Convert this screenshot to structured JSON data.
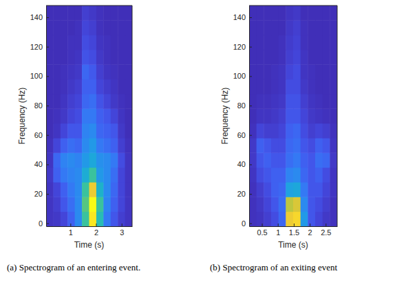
{
  "chart_data": [
    {
      "type": "heatmap",
      "caption": "(a) Spectrogram of an entering event.",
      "xlabel": "Time (s)",
      "ylabel": "Frequency (Hz)",
      "xlim": [
        0.05,
        3.41
      ],
      "xticks": [
        1,
        2,
        3
      ],
      "ylim": [
        -2,
        148
      ],
      "yticks": [
        0,
        20,
        40,
        60,
        80,
        100,
        120,
        140
      ],
      "x_bins": [
        0.05,
        0.33,
        0.61,
        0.89,
        1.17,
        1.45,
        1.73,
        2.01,
        2.29,
        2.57,
        2.85,
        3.13,
        3.41
      ],
      "y_bins": [
        -2,
        8,
        18,
        28,
        38,
        48,
        58,
        68,
        78,
        88,
        98,
        108,
        118,
        128,
        138,
        148
      ],
      "zlim": [
        0,
        1
      ],
      "cells": [
        [
          0.05,
          0.06,
          0.1,
          0.18,
          0.3,
          0.55,
          0.95,
          0.5,
          0.25,
          0.15,
          0.08,
          0.05
        ],
        [
          0.05,
          0.08,
          0.15,
          0.22,
          0.3,
          0.6,
          1.0,
          0.55,
          0.28,
          0.18,
          0.1,
          0.05
        ],
        [
          0.05,
          0.1,
          0.18,
          0.25,
          0.3,
          0.55,
          0.85,
          0.45,
          0.3,
          0.2,
          0.1,
          0.05
        ],
        [
          0.06,
          0.18,
          0.25,
          0.28,
          0.3,
          0.42,
          0.55,
          0.35,
          0.3,
          0.22,
          0.1,
          0.05
        ],
        [
          0.05,
          0.2,
          0.28,
          0.3,
          0.28,
          0.35,
          0.4,
          0.32,
          0.3,
          0.25,
          0.12,
          0.05
        ],
        [
          0.04,
          0.1,
          0.18,
          0.22,
          0.2,
          0.3,
          0.35,
          0.25,
          0.22,
          0.18,
          0.08,
          0.04
        ],
        [
          0.03,
          0.05,
          0.1,
          0.15,
          0.15,
          0.28,
          0.3,
          0.2,
          0.18,
          0.15,
          0.06,
          0.03
        ],
        [
          0.03,
          0.04,
          0.06,
          0.1,
          0.12,
          0.25,
          0.25,
          0.18,
          0.15,
          0.1,
          0.05,
          0.03
        ],
        [
          0.03,
          0.03,
          0.05,
          0.08,
          0.1,
          0.2,
          0.22,
          0.14,
          0.1,
          0.06,
          0.04,
          0.03
        ],
        [
          0.03,
          0.03,
          0.04,
          0.06,
          0.08,
          0.18,
          0.18,
          0.1,
          0.07,
          0.05,
          0.03,
          0.03
        ],
        [
          0.03,
          0.03,
          0.04,
          0.05,
          0.06,
          0.2,
          0.16,
          0.08,
          0.05,
          0.04,
          0.03,
          0.03
        ],
        [
          0.03,
          0.03,
          0.03,
          0.04,
          0.05,
          0.14,
          0.12,
          0.06,
          0.04,
          0.03,
          0.03,
          0.03
        ],
        [
          0.03,
          0.03,
          0.03,
          0.04,
          0.04,
          0.12,
          0.1,
          0.05,
          0.04,
          0.03,
          0.03,
          0.03
        ],
        [
          0.03,
          0.03,
          0.03,
          0.03,
          0.04,
          0.1,
          0.08,
          0.04,
          0.03,
          0.03,
          0.03,
          0.03
        ],
        [
          0.03,
          0.03,
          0.03,
          0.03,
          0.03,
          0.08,
          0.06,
          0.04,
          0.03,
          0.03,
          0.03,
          0.03
        ]
      ]
    },
    {
      "type": "heatmap",
      "caption": "(b) Spectrogram of an exiting event",
      "xlabel": "Time (s)",
      "ylabel": "Frequency (Hz)",
      "xlim": [
        0.1,
        2.86
      ],
      "xticks": [
        0.5,
        1,
        1.5,
        2,
        2.5
      ],
      "ylim": [
        -2,
        148
      ],
      "yticks": [
        0,
        20,
        40,
        60,
        80,
        100,
        120,
        140
      ],
      "x_bins": [
        0.1,
        0.33,
        0.56,
        0.79,
        1.02,
        1.25,
        1.48,
        1.71,
        1.94,
        2.17,
        2.4,
        2.63,
        2.86
      ],
      "y_bins": [
        -2,
        8,
        18,
        28,
        38,
        48,
        58,
        68,
        78,
        88,
        98,
        108,
        118,
        128,
        138,
        148
      ],
      "zlim": [
        0,
        1
      ],
      "cells": [
        [
          0.04,
          0.05,
          0.08,
          0.12,
          0.2,
          0.85,
          0.9,
          0.35,
          0.15,
          0.1,
          0.06,
          0.04
        ],
        [
          0.04,
          0.06,
          0.1,
          0.15,
          0.22,
          0.75,
          0.8,
          0.3,
          0.15,
          0.12,
          0.08,
          0.04
        ],
        [
          0.04,
          0.08,
          0.12,
          0.18,
          0.2,
          0.38,
          0.4,
          0.25,
          0.15,
          0.15,
          0.1,
          0.05
        ],
        [
          0.05,
          0.12,
          0.15,
          0.18,
          0.18,
          0.28,
          0.3,
          0.2,
          0.15,
          0.18,
          0.12,
          0.05
        ],
        [
          0.06,
          0.15,
          0.18,
          0.15,
          0.15,
          0.22,
          0.25,
          0.18,
          0.15,
          0.22,
          0.2,
          0.06
        ],
        [
          0.06,
          0.18,
          0.15,
          0.12,
          0.12,
          0.2,
          0.22,
          0.15,
          0.12,
          0.18,
          0.15,
          0.05
        ],
        [
          0.04,
          0.1,
          0.08,
          0.08,
          0.1,
          0.18,
          0.2,
          0.12,
          0.08,
          0.1,
          0.08,
          0.04
        ],
        [
          0.03,
          0.05,
          0.05,
          0.06,
          0.08,
          0.15,
          0.15,
          0.1,
          0.06,
          0.05,
          0.04,
          0.03
        ],
        [
          0.03,
          0.04,
          0.04,
          0.05,
          0.06,
          0.14,
          0.14,
          0.08,
          0.05,
          0.04,
          0.03,
          0.03
        ],
        [
          0.03,
          0.03,
          0.03,
          0.04,
          0.05,
          0.12,
          0.12,
          0.06,
          0.04,
          0.03,
          0.03,
          0.03
        ],
        [
          0.03,
          0.03,
          0.03,
          0.04,
          0.05,
          0.1,
          0.12,
          0.05,
          0.04,
          0.03,
          0.03,
          0.03
        ],
        [
          0.03,
          0.03,
          0.03,
          0.03,
          0.04,
          0.08,
          0.1,
          0.05,
          0.03,
          0.03,
          0.03,
          0.03
        ],
        [
          0.03,
          0.03,
          0.03,
          0.03,
          0.04,
          0.07,
          0.09,
          0.04,
          0.03,
          0.03,
          0.03,
          0.03
        ],
        [
          0.03,
          0.03,
          0.03,
          0.03,
          0.03,
          0.06,
          0.08,
          0.04,
          0.03,
          0.03,
          0.03,
          0.03
        ],
        [
          0.03,
          0.03,
          0.03,
          0.03,
          0.03,
          0.05,
          0.06,
          0.03,
          0.03,
          0.03,
          0.03,
          0.03
        ]
      ]
    }
  ]
}
